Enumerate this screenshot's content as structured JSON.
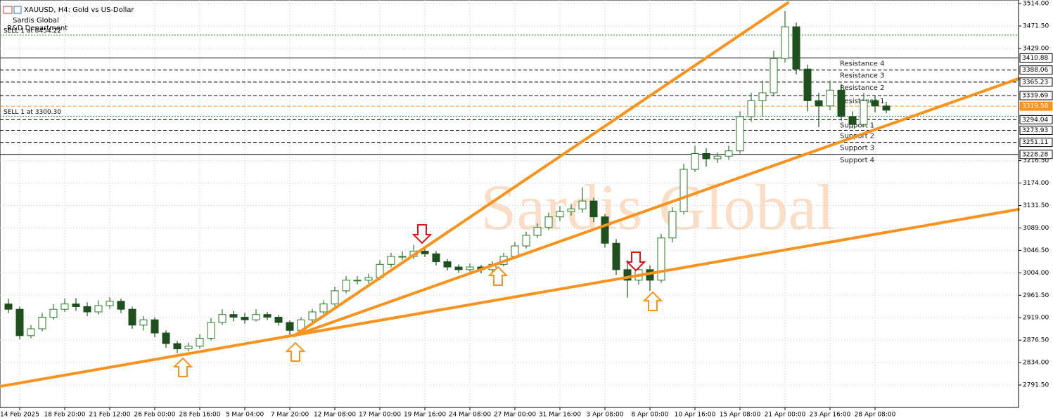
{
  "chart_data": {
    "type": "candlestick",
    "symbol": "XAUUSD, H4:  Gold vs US-Dollar",
    "company": "Sardis Global",
    "department": "R&D Department",
    "watermark": "Sardis Global",
    "up_color": "#2b7a2b",
    "down_color": "#1e4f1e",
    "grid": true,
    "categories": [
      null,
      "14 Feb 2025",
      null,
      null,
      null,
      "18 Feb 20:00",
      null,
      null,
      null,
      "21 Feb 12:00",
      null,
      null,
      null,
      "26 Feb 00:00",
      null,
      null,
      null,
      "28 Feb 16:00",
      null,
      null,
      null,
      "5 Mar 04:00",
      null,
      null,
      null,
      "7 Mar 20:00",
      null,
      null,
      null,
      "12 Mar 08:00",
      null,
      null,
      null,
      "17 Mar 00:00",
      null,
      null,
      null,
      "19 Mar 16:00",
      null,
      null,
      null,
      "24 Mar 08:00",
      null,
      null,
      null,
      "27 Mar 00:00",
      null,
      null,
      null,
      "31 Mar 16:00",
      null,
      null,
      null,
      "3 Apr 08:00",
      null,
      null,
      null,
      "8 Apr 00:00",
      null,
      null,
      null,
      "10 Apr 16:00",
      null,
      null,
      null,
      "15 Apr 08:00",
      null,
      null,
      null,
      "21 Apr 00:00",
      null,
      null,
      null,
      "23 Apr 16:00",
      null,
      null,
      null,
      "28 Apr 08:00",
      null
    ],
    "open": [
      2945,
      2935,
      2885,
      2898,
      2920,
      2935,
      2945,
      2940,
      2930,
      2942,
      2950,
      2935,
      2905,
      2915,
      2890,
      2870,
      2860,
      2865,
      2880,
      2910,
      2925,
      2920,
      2915,
      2925,
      2920,
      2910,
      2895,
      2915,
      2930,
      2945,
      2970,
      2990,
      2990,
      2995,
      3020,
      3035,
      3035,
      3045,
      3040,
      3025,
      3015,
      3010,
      3015,
      3010,
      3020,
      3035,
      3055,
      3075,
      3090,
      3110,
      3120,
      3125,
      3140,
      3110,
      3060,
      3010,
      2990,
      3010,
      2990,
      3070,
      3120,
      3200,
      3230,
      3220,
      3225,
      3235,
      3300,
      3330,
      3345,
      3410,
      3470,
      3390,
      3330,
      3320,
      3350,
      3300,
      3285,
      3330,
      3320
    ],
    "high": [
      2955,
      2940,
      2905,
      2928,
      2945,
      2955,
      2956,
      2948,
      2952,
      2958,
      2955,
      2940,
      2922,
      2920,
      2895,
      2875,
      2872,
      2888,
      2918,
      2935,
      2932,
      2928,
      2935,
      2930,
      2924,
      2914,
      2920,
      2936,
      2952,
      2978,
      2998,
      2998,
      3002,
      3028,
      3042,
      3045,
      3057,
      3052,
      3045,
      3030,
      3020,
      3022,
      3019,
      3026,
      3042,
      3062,
      3082,
      3098,
      3118,
      3130,
      3134,
      3166,
      3146,
      3115,
      3068,
      3028,
      3030,
      3018,
      3078,
      3128,
      3210,
      3245,
      3240,
      3232,
      3245,
      3310,
      3345,
      3368,
      3425,
      3500,
      3478,
      3398,
      3345,
      3368,
      3362,
      3310,
      3345,
      3340,
      3328
    ],
    "low": [
      2928,
      2878,
      2880,
      2893,
      2915,
      2930,
      2932,
      2922,
      2925,
      2936,
      2928,
      2898,
      2895,
      2882,
      2862,
      2852,
      2855,
      2860,
      2876,
      2905,
      2912,
      2908,
      2912,
      2914,
      2904,
      2886,
      2890,
      2910,
      2926,
      2940,
      2965,
      2982,
      2984,
      2990,
      3014,
      3028,
      3030,
      3034,
      3018,
      3008,
      3004,
      3006,
      3003,
      3005,
      3016,
      3030,
      3050,
      3070,
      3085,
      3102,
      3112,
      3118,
      3100,
      3052,
      3000,
      2957,
      2982,
      2970,
      2985,
      3062,
      3115,
      3195,
      3205,
      3212,
      3218,
      3230,
      3290,
      3300,
      3338,
      3402,
      3380,
      3310,
      3280,
      3312,
      3292,
      3278,
      3280,
      3308,
      3306
    ],
    "close": [
      2935,
      2885,
      2898,
      2920,
      2935,
      2945,
      2940,
      2930,
      2942,
      2950,
      2935,
      2905,
      2915,
      2890,
      2870,
      2860,
      2865,
      2880,
      2910,
      2925,
      2920,
      2915,
      2925,
      2920,
      2910,
      2895,
      2915,
      2930,
      2945,
      2970,
      2990,
      2990,
      2995,
      3020,
      3035,
      3035,
      3045,
      3040,
      3025,
      3015,
      3010,
      3015,
      3010,
      3020,
      3035,
      3055,
      3075,
      3090,
      3110,
      3120,
      3125,
      3140,
      3110,
      3060,
      3010,
      2990,
      3010,
      2990,
      3070,
      3120,
      3200,
      3230,
      3220,
      3225,
      3235,
      3300,
      3330,
      3345,
      3410,
      3470,
      3390,
      3330,
      3320,
      3350,
      3300,
      3285,
      3330,
      3320,
      3312
    ],
    "ylim": [
      2749,
      3520.7
    ],
    "yticks": [
      {
        "value": 3514,
        "label": "3514.00"
      },
      {
        "value": 3471.5,
        "label": "3471.50"
      },
      {
        "value": 3429,
        "label": "3429.00"
      },
      {
        "value": 3216.5,
        "label": "3216.50"
      },
      {
        "value": 3174,
        "label": "3174.00"
      },
      {
        "value": 3131.5,
        "label": "3131.50"
      },
      {
        "value": 3089,
        "label": "3089.00"
      },
      {
        "value": 3046.5,
        "label": "3046.50"
      },
      {
        "value": 3004,
        "label": "3004.00"
      },
      {
        "value": 2961.5,
        "label": "2961.50"
      },
      {
        "value": 2919,
        "label": "2919.00"
      },
      {
        "value": 2876.5,
        "label": "2876.50"
      },
      {
        "value": 2834,
        "label": "2834.00"
      },
      {
        "value": 2791.5,
        "label": "2791.50"
      }
    ],
    "levels": [
      {
        "value": 3410.88,
        "label": "3410.88",
        "text": "Resistance 4",
        "style": "solid",
        "color": "#000000"
      },
      {
        "value": 3388.06,
        "label": "3388.06",
        "text": "Resistance 3",
        "style": "dashed",
        "color": "#000000"
      },
      {
        "value": 3365.23,
        "label": "3365.23",
        "text": "Resistance 2",
        "style": "dashed",
        "color": "#000000"
      },
      {
        "value": 3339.69,
        "label": "3339.69",
        "text": "Resistance 1",
        "style": "dashed",
        "color": "#000000"
      },
      {
        "value": 3319.58,
        "label": "3319.58",
        "style": "dashed",
        "color": "#f7931e"
      },
      {
        "value": 3294.04,
        "label": "3294.04",
        "text": "Support 1",
        "style": "dashed",
        "color": "#000000"
      },
      {
        "value": 3273.93,
        "label": "3273.93",
        "text": "Support 2",
        "style": "dashed",
        "color": "#000000"
      },
      {
        "value": 3251.11,
        "label": "3251.11",
        "text": "Support 3",
        "style": "dashed",
        "color": "#000000"
      },
      {
        "value": 3228.28,
        "label": "3228.28",
        "text": "Support 4",
        "style": "solid",
        "color": "#000000"
      }
    ],
    "trades": [
      {
        "value": 3454.22,
        "text": "SELL 1 at 3454.22",
        "color": "#2e8b2e"
      },
      {
        "value": 3300.3,
        "text": "SELL 1 at 3300.30",
        "color": "#2e8b2e"
      }
    ]
  }
}
